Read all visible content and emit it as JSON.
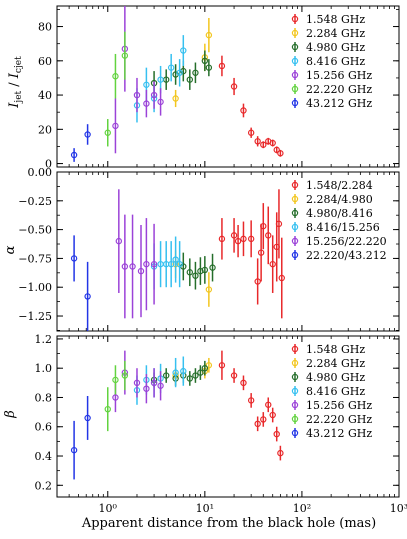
{
  "chart_data": {
    "type": "scatter",
    "shared_x": {
      "label": "Apparent distance from the black hole (mas)",
      "scale": "log",
      "range": [
        0.3,
        1000
      ],
      "ticks": [
        1,
        10,
        100,
        1000
      ],
      "tick_labels": [
        "10⁰",
        "10¹",
        "10²",
        "10³"
      ]
    },
    "panels": [
      {
        "id": "top",
        "ylabel": "I_jet / I_cjet",
        "ylim": [
          -2,
          92
        ],
        "yticks": [
          0,
          20,
          40,
          60,
          80
        ],
        "ytick_labels": [
          "0",
          "20",
          "40",
          "60",
          "80"
        ],
        "legend_position": "top-right",
        "series": [
          {
            "name": "1.548 GHz",
            "color": "#e8282a",
            "points": [
              [
                15,
                57,
                6
              ],
              [
                20,
                45,
                5
              ],
              [
                25,
                31,
                4
              ],
              [
                30,
                18,
                3
              ],
              [
                35,
                13,
                3
              ],
              [
                40,
                11,
                2
              ],
              [
                45,
                13,
                2
              ],
              [
                50,
                12,
                2
              ],
              [
                55,
                8,
                2
              ],
              [
                60,
                6,
                2
              ]
            ]
          },
          {
            "name": "2.284 GHz",
            "color": "#f2c61f",
            "points": [
              [
                5,
                38,
                5
              ],
              [
                10,
                62,
                8
              ],
              [
                11,
                75,
                10
              ]
            ]
          },
          {
            "name": "4.980 GHz",
            "color": "#256e2a",
            "points": [
              [
                3,
                47,
                7
              ],
              [
                4,
                49,
                6
              ],
              [
                5,
                52,
                6
              ],
              [
                6,
                54,
                6
              ],
              [
                7,
                49,
                6
              ],
              [
                8,
                53,
                6
              ],
              [
                10,
                60,
                6
              ],
              [
                11,
                56,
                5
              ]
            ]
          },
          {
            "name": "8.416 GHz",
            "color": "#36c0f0",
            "points": [
              [
                2,
                34,
                10
              ],
              [
                2.5,
                46,
                10
              ],
              [
                3,
                38,
                8
              ],
              [
                3.5,
                49,
                8
              ],
              [
                4.5,
                56,
                8
              ],
              [
                5.5,
                53,
                8
              ],
              [
                6,
                66,
                9
              ]
            ]
          },
          {
            "name": "15.256 GHz",
            "color": "#9b42d8",
            "points": [
              [
                1.2,
                22,
                16
              ],
              [
                1.5,
                67,
                25
              ],
              [
                2,
                40,
                10
              ],
              [
                2.5,
                35,
                8
              ],
              [
                3,
                40,
                8
              ],
              [
                3.5,
                36,
                8
              ]
            ]
          },
          {
            "name": "22.220 GHz",
            "color": "#62d33f",
            "points": [
              [
                1,
                18,
                8
              ],
              [
                1.2,
                51,
                13
              ],
              [
                1.5,
                63,
                14
              ]
            ]
          },
          {
            "name": "43.212 GHz",
            "color": "#2235e6",
            "points": [
              [
                0.45,
                5,
                4
              ],
              [
                0.62,
                17,
                6
              ]
            ]
          }
        ]
      },
      {
        "id": "middle",
        "ylabel": "α",
        "ylim": [
          -1.38,
          0.0
        ],
        "yticks": [
          0.0,
          -0.25,
          -0.5,
          -0.75,
          -1.0,
          -1.25
        ],
        "ytick_labels": [
          "0.00",
          "−0.25",
          "−0.50",
          "−0.75",
          "−1.00",
          "−1.25"
        ],
        "legend_position": "top-right",
        "series": [
          {
            "name": "1.548/2.284",
            "color": "#e8282a",
            "points": [
              [
                15,
                -0.58,
                0.18
              ],
              [
                20,
                -0.55,
                0.15
              ],
              [
                22,
                -0.6,
                0.14
              ],
              [
                25,
                -0.58,
                0.15
              ],
              [
                30,
                -0.58,
                0.16
              ],
              [
                35,
                -0.95,
                0.2
              ],
              [
                38,
                -0.7,
                0.25
              ],
              [
                40,
                -0.47,
                0.2
              ],
              [
                45,
                -0.55,
                0.25
              ],
              [
                50,
                -0.8,
                0.25
              ],
              [
                55,
                -0.65,
                0.3
              ],
              [
                58,
                -0.45,
                0.3
              ],
              [
                62,
                -0.92,
                0.35
              ]
            ]
          },
          {
            "name": "2.284/4.980",
            "color": "#f2c61f",
            "points": [
              [
                5,
                -0.8,
                0.12
              ],
              [
                11,
                -1.02,
                0.15
              ]
            ]
          },
          {
            "name": "4.980/8.416",
            "color": "#256e2a",
            "points": [
              [
                6,
                -0.82,
                0.12
              ],
              [
                7,
                -0.87,
                0.12
              ],
              [
                8,
                -0.9,
                0.12
              ],
              [
                9,
                -0.86,
                0.12
              ],
              [
                10,
                -0.85,
                0.12
              ],
              [
                12,
                -0.83,
                0.12
              ]
            ]
          },
          {
            "name": "8.416/15.256",
            "color": "#36c0f0",
            "points": [
              [
                3,
                -0.82,
                0.2
              ],
              [
                3.5,
                -0.8,
                0.2
              ],
              [
                4,
                -0.8,
                0.2
              ],
              [
                4.5,
                -0.8,
                0.2
              ],
              [
                5,
                -0.76,
                0.2
              ],
              [
                5.5,
                -0.8,
                0.2
              ]
            ]
          },
          {
            "name": "15.256/22.220",
            "color": "#9b42d8",
            "points": [
              [
                1.3,
                -0.6,
                0.45
              ],
              [
                1.5,
                -0.82,
                0.45
              ],
              [
                1.8,
                -0.82,
                0.45
              ],
              [
                2.2,
                -0.86,
                0.4
              ],
              [
                2.5,
                -0.8,
                0.4
              ],
              [
                3,
                -0.8,
                0.35
              ]
            ]
          },
          {
            "name": "22.220/43.212",
            "color": "#2235e6",
            "points": [
              [
                0.45,
                -0.75,
                0.2
              ],
              [
                0.62,
                -1.08,
                0.3
              ]
            ]
          }
        ]
      },
      {
        "id": "bottom",
        "ylabel": "β",
        "ylim": [
          0.12,
          1.22
        ],
        "yticks": [
          0.2,
          0.4,
          0.6,
          0.8,
          1.0,
          1.2
        ],
        "ytick_labels": [
          "0.2",
          "0.4",
          "0.6",
          "0.8",
          "1.0",
          "1.2"
        ],
        "legend_position": "top-right",
        "series": [
          {
            "name": "1.548 GHz",
            "color": "#e8282a",
            "points": [
              [
                15,
                1.02,
                0.1
              ],
              [
                20,
                0.95,
                0.05
              ],
              [
                25,
                0.9,
                0.05
              ],
              [
                30,
                0.78,
                0.05
              ],
              [
                35,
                0.62,
                0.05
              ],
              [
                40,
                0.65,
                0.05
              ],
              [
                45,
                0.75,
                0.05
              ],
              [
                50,
                0.68,
                0.05
              ],
              [
                55,
                0.55,
                0.05
              ],
              [
                60,
                0.42,
                0.05
              ]
            ]
          },
          {
            "name": "2.284 GHz",
            "color": "#f2c61f",
            "points": [
              [
                5,
                0.95,
                0.05
              ],
              [
                10,
                0.98,
                0.05
              ],
              [
                11,
                1.02,
                0.05
              ]
            ]
          },
          {
            "name": "4.980 GHz",
            "color": "#256e2a",
            "points": [
              [
                3,
                0.92,
                0.05
              ],
              [
                4,
                0.95,
                0.05
              ],
              [
                5,
                0.93,
                0.05
              ],
              [
                6,
                0.95,
                0.05
              ],
              [
                7,
                0.93,
                0.05
              ],
              [
                8,
                0.95,
                0.05
              ],
              [
                9,
                0.97,
                0.05
              ],
              [
                10,
                1.0,
                0.05
              ]
            ]
          },
          {
            "name": "8.416 GHz",
            "color": "#36c0f0",
            "points": [
              [
                2,
                0.85,
                0.1
              ],
              [
                2.5,
                0.92,
                0.1
              ],
              [
                3,
                0.9,
                0.1
              ],
              [
                3.5,
                0.93,
                0.1
              ],
              [
                5,
                0.97,
                0.1
              ],
              [
                6,
                0.98,
                0.1
              ]
            ]
          },
          {
            "name": "15.256 GHz",
            "color": "#9b42d8",
            "points": [
              [
                1.2,
                0.8,
                0.1
              ],
              [
                1.5,
                0.97,
                0.15
              ],
              [
                2,
                0.9,
                0.1
              ],
              [
                2.5,
                0.86,
                0.1
              ],
              [
                3,
                0.9,
                0.1
              ],
              [
                3.5,
                0.88,
                0.1
              ]
            ]
          },
          {
            "name": "22.220 GHz",
            "color": "#62d33f",
            "points": [
              [
                1,
                0.72,
                0.15
              ],
              [
                1.2,
                0.92,
                0.1
              ],
              [
                1.5,
                0.95,
                0.1
              ]
            ]
          },
          {
            "name": "43.212 GHz",
            "color": "#2235e6",
            "points": [
              [
                0.45,
                0.44,
                0.2
              ],
              [
                0.62,
                0.66,
                0.15
              ]
            ]
          }
        ]
      }
    ]
  }
}
